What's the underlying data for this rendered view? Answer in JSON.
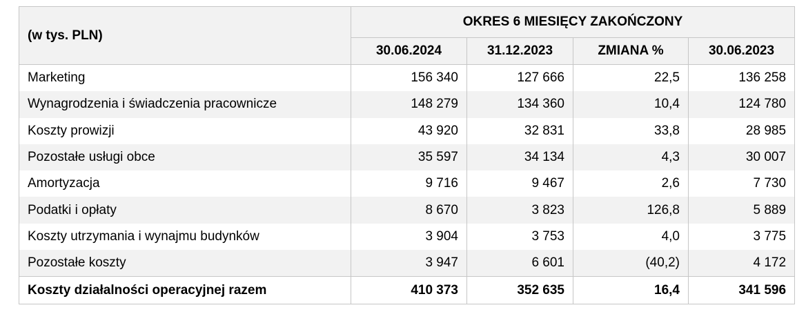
{
  "table": {
    "unit_label": "(w tys. PLN)",
    "group_header": "OKRES 6 MIESIĘCY ZAKOŃCZONY",
    "columns": [
      "30.06.2024",
      "31.12.2023",
      "ZMIANA %",
      "30.06.2023"
    ],
    "rows": [
      {
        "label": "Marketing",
        "values": [
          "156 340",
          "127 666",
          "22,5",
          "136 258"
        ]
      },
      {
        "label": "Wynagrodzenia i świadczenia pracownicze",
        "values": [
          "148 279",
          "134 360",
          "10,4",
          "124 780"
        ]
      },
      {
        "label": "Koszty prowizji",
        "values": [
          "43 920",
          "32 831",
          "33,8",
          "28 985"
        ]
      },
      {
        "label": "Pozostałe usługi obce",
        "values": [
          "35 597",
          "34 134",
          "4,3",
          "30 007"
        ]
      },
      {
        "label": "Amortyzacja",
        "values": [
          "9 716",
          "9 467",
          "2,6",
          "7 730"
        ]
      },
      {
        "label": "Podatki i opłaty",
        "values": [
          "8 670",
          "3 823",
          "126,8",
          "5 889"
        ]
      },
      {
        "label": "Koszty utrzymania i wynajmu budynków",
        "values": [
          "3 904",
          "3 753",
          "4,0",
          "3 775"
        ]
      },
      {
        "label": "Pozostałe koszty",
        "values": [
          "3 947",
          "6 601",
          "(40,2)",
          "4 172"
        ]
      }
    ],
    "total": {
      "label": "Koszty działalności operacyjnej razem",
      "values": [
        "410 373",
        "352 635",
        "16,4",
        "341 596"
      ]
    }
  },
  "colors": {
    "header_bg": "#f2f2f2",
    "alt_row_bg": "#f2f2f2",
    "border": "#c6c6c6",
    "text": "#000000"
  }
}
